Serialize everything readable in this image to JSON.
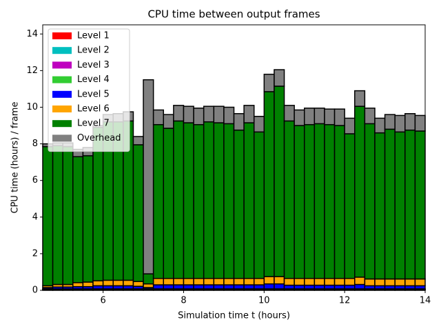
{
  "chart_data": {
    "type": "stacked_histogram",
    "title": "CPU time between output frames",
    "xlabel": "Simulation time t (hours)",
    "ylabel": "CPU time (hours) / frame",
    "bins": [
      4.5,
      4.75,
      5,
      5.25,
      5.5,
      5.75,
      6,
      6.25,
      6.5,
      6.75,
      7,
      7.25,
      7.5,
      7.75,
      8,
      8.25,
      8.5,
      8.75,
      9,
      9.25,
      9.5,
      9.75,
      10,
      10.25,
      10.5,
      10.75,
      11,
      11.25,
      11.5,
      11.75,
      12,
      12.25,
      12.5,
      12.75,
      13,
      13.25,
      13.5,
      13.75,
      14
    ],
    "xlim": [
      4.5,
      14
    ],
    "ylim": [
      0,
      14.5
    ],
    "xticks": [
      6,
      8,
      10,
      12,
      14
    ],
    "yticks": [
      0,
      2,
      4,
      6,
      8,
      10,
      12,
      14
    ],
    "legend": "upper left",
    "edgecolor": "#000000",
    "series": [
      {
        "name": "Level 1",
        "color": "#ff0000",
        "values": [
          0.02,
          0.02,
          0.02,
          0.02,
          0.02,
          0.02,
          0.02,
          0.02,
          0.02,
          0.02,
          0.02,
          0.02,
          0.02,
          0.02,
          0.02,
          0.02,
          0.02,
          0.02,
          0.02,
          0.02,
          0.02,
          0.02,
          0.02,
          0.02,
          0.02,
          0.02,
          0.02,
          0.02,
          0.02,
          0.02,
          0.02,
          0.02,
          0.02,
          0.02,
          0.02,
          0.02,
          0.02,
          0.02
        ]
      },
      {
        "name": "Level 2",
        "color": "#00bfbf",
        "values": [
          0.02,
          0.02,
          0.02,
          0.02,
          0.02,
          0.02,
          0.02,
          0.02,
          0.02,
          0.02,
          0.02,
          0.02,
          0.02,
          0.02,
          0.02,
          0.02,
          0.02,
          0.02,
          0.02,
          0.02,
          0.02,
          0.02,
          0.02,
          0.02,
          0.02,
          0.02,
          0.02,
          0.02,
          0.02,
          0.02,
          0.02,
          0.02,
          0.02,
          0.02,
          0.02,
          0.02,
          0.02,
          0.02
        ]
      },
      {
        "name": "Level 3",
        "color": "#bf00bf",
        "values": [
          0.02,
          0.02,
          0.02,
          0.02,
          0.02,
          0.02,
          0.02,
          0.02,
          0.02,
          0.02,
          0.02,
          0.02,
          0.02,
          0.02,
          0.02,
          0.02,
          0.02,
          0.02,
          0.02,
          0.02,
          0.02,
          0.02,
          0.02,
          0.02,
          0.02,
          0.02,
          0.02,
          0.02,
          0.02,
          0.02,
          0.02,
          0.02,
          0.02,
          0.02,
          0.02,
          0.02,
          0.02,
          0.02
        ]
      },
      {
        "name": "Level 4",
        "color": "#32cd32",
        "values": [
          0.02,
          0.02,
          0.02,
          0.02,
          0.02,
          0.02,
          0.02,
          0.02,
          0.02,
          0.02,
          0.02,
          0.02,
          0.02,
          0.02,
          0.02,
          0.02,
          0.02,
          0.02,
          0.02,
          0.02,
          0.02,
          0.02,
          0.02,
          0.02,
          0.02,
          0.02,
          0.02,
          0.02,
          0.02,
          0.02,
          0.02,
          0.02,
          0.02,
          0.02,
          0.02,
          0.02,
          0.02,
          0.02
        ]
      },
      {
        "name": "Level 5",
        "color": "#0000ff",
        "values": [
          0.07,
          0.1,
          0.1,
          0.12,
          0.12,
          0.17,
          0.17,
          0.17,
          0.17,
          0.14,
          0.07,
          0.22,
          0.22,
          0.22,
          0.22,
          0.22,
          0.22,
          0.22,
          0.22,
          0.22,
          0.22,
          0.22,
          0.27,
          0.27,
          0.2,
          0.2,
          0.2,
          0.2,
          0.2,
          0.2,
          0.2,
          0.24,
          0.17,
          0.17,
          0.17,
          0.17,
          0.17,
          0.17
        ]
      },
      {
        "name": "Level 6",
        "color": "#ffa500",
        "values": [
          0.1,
          0.14,
          0.14,
          0.22,
          0.25,
          0.27,
          0.3,
          0.3,
          0.3,
          0.26,
          0.2,
          0.35,
          0.35,
          0.35,
          0.35,
          0.35,
          0.35,
          0.35,
          0.35,
          0.35,
          0.35,
          0.35,
          0.4,
          0.4,
          0.37,
          0.37,
          0.37,
          0.37,
          0.37,
          0.37,
          0.37,
          0.4,
          0.37,
          0.37,
          0.37,
          0.37,
          0.37,
          0.37
        ]
      },
      {
        "name": "Level 7",
        "color": "#008000",
        "values": [
          7.6,
          7.58,
          7.53,
          6.88,
          6.9,
          8.38,
          8.65,
          8.65,
          8.7,
          7.47,
          0.55,
          8.4,
          8.2,
          8.6,
          8.5,
          8.4,
          8.55,
          8.5,
          8.45,
          8.1,
          8.5,
          8.0,
          10.1,
          10.4,
          8.6,
          8.35,
          8.4,
          8.45,
          8.4,
          8.35,
          7.9,
          9.33,
          8.48,
          7.98,
          8.18,
          8.03,
          8.13,
          8.08
        ]
      },
      {
        "name": "Overhead",
        "color": "#808080",
        "values": [
          0.15,
          0.15,
          0.2,
          0.4,
          0.45,
          0.1,
          0.4,
          0.45,
          0.5,
          0.45,
          10.6,
          0.8,
          0.75,
          0.85,
          0.9,
          0.9,
          0.85,
          0.9,
          0.9,
          0.9,
          0.95,
          0.85,
          0.95,
          0.9,
          0.85,
          0.85,
          0.9,
          0.85,
          0.85,
          0.9,
          0.85,
          0.85,
          0.85,
          0.8,
          0.8,
          0.9,
          0.9,
          0.85
        ]
      }
    ]
  }
}
